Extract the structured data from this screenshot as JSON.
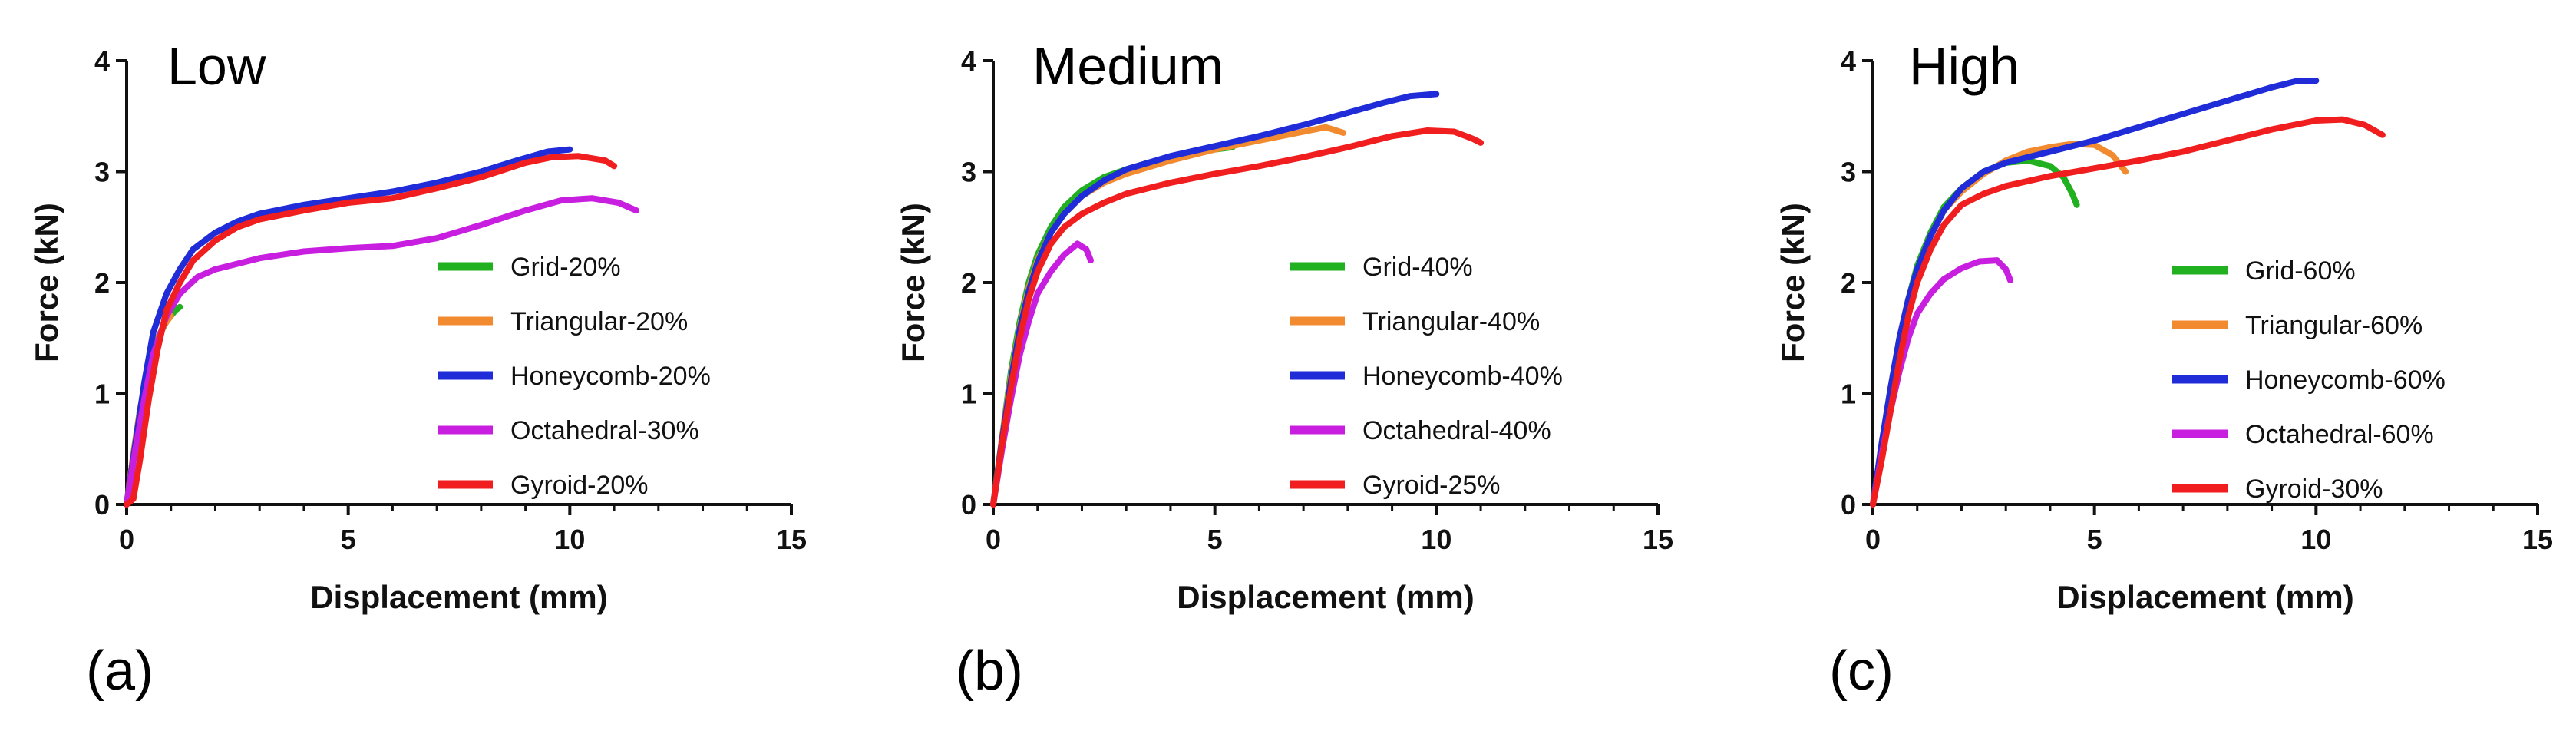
{
  "chart_data": [
    {
      "type": "line",
      "panel_label": "(a)",
      "title": "Low",
      "xlabel": "Displacement (mm)",
      "ylabel": "Force (kN)",
      "xlim": [
        0,
        15
      ],
      "ylim": [
        0,
        4
      ],
      "xticks": [
        "0",
        "5",
        "10",
        "15"
      ],
      "yticks": [
        "0",
        "1",
        "2",
        "3",
        "4"
      ],
      "legend_position": "right",
      "series": [
        {
          "name": "Grid-20%",
          "color": "#20b020",
          "points": [
            [
              0,
              0
            ],
            [
              0.15,
              0.45
            ],
            [
              0.3,
              0.85
            ],
            [
              0.5,
              1.25
            ],
            [
              0.7,
              1.5
            ],
            [
              0.9,
              1.65
            ],
            [
              1.1,
              1.75
            ],
            [
              1.2,
              1.78
            ]
          ]
        },
        {
          "name": "Triangular-20%",
          "color": "#f28a30",
          "points": [
            [
              0,
              0
            ],
            [
              0.15,
              0.45
            ],
            [
              0.3,
              0.85
            ],
            [
              0.5,
              1.25
            ],
            [
              0.7,
              1.5
            ],
            [
              0.85,
              1.62
            ],
            [
              1.0,
              1.7
            ]
          ]
        },
        {
          "name": "Honeycomb-20%",
          "color": "#1f2cd8",
          "points": [
            [
              0,
              0
            ],
            [
              0.2,
              0.55
            ],
            [
              0.4,
              1.1
            ],
            [
              0.6,
              1.55
            ],
            [
              0.9,
              1.9
            ],
            [
              1.2,
              2.12
            ],
            [
              1.5,
              2.3
            ],
            [
              2.0,
              2.45
            ],
            [
              2.5,
              2.55
            ],
            [
              3,
              2.62
            ],
            [
              4,
              2.7
            ],
            [
              5,
              2.76
            ],
            [
              6,
              2.82
            ],
            [
              7,
              2.9
            ],
            [
              8,
              3.0
            ],
            [
              8.8,
              3.1
            ],
            [
              9.5,
              3.18
            ],
            [
              10,
              3.2
            ]
          ]
        },
        {
          "name": "Octahedral-30%",
          "color": "#c81ee0",
          "points": [
            [
              0,
              0
            ],
            [
              0.2,
              0.5
            ],
            [
              0.4,
              0.95
            ],
            [
              0.6,
              1.35
            ],
            [
              0.9,
              1.7
            ],
            [
              1.2,
              1.9
            ],
            [
              1.6,
              2.05
            ],
            [
              2.0,
              2.12
            ],
            [
              3,
              2.22
            ],
            [
              4,
              2.28
            ],
            [
              5,
              2.31
            ],
            [
              6,
              2.33
            ],
            [
              7,
              2.4
            ],
            [
              8,
              2.52
            ],
            [
              9,
              2.65
            ],
            [
              9.8,
              2.74
            ],
            [
              10.5,
              2.76
            ],
            [
              11.1,
              2.72
            ],
            [
              11.5,
              2.65
            ]
          ]
        },
        {
          "name": "Gyroid-20%",
          "color": "#f01e1e",
          "points": [
            [
              0,
              0
            ],
            [
              0.15,
              0.05
            ],
            [
              0.3,
              0.4
            ],
            [
              0.5,
              0.95
            ],
            [
              0.7,
              1.4
            ],
            [
              0.9,
              1.75
            ],
            [
              1.2,
              2.0
            ],
            [
              1.5,
              2.2
            ],
            [
              2.0,
              2.38
            ],
            [
              2.5,
              2.5
            ],
            [
              3,
              2.57
            ],
            [
              4,
              2.65
            ],
            [
              5,
              2.72
            ],
            [
              6,
              2.76
            ],
            [
              7,
              2.85
            ],
            [
              8,
              2.95
            ],
            [
              9,
              3.08
            ],
            [
              9.6,
              3.13
            ],
            [
              10.2,
              3.14
            ],
            [
              10.8,
              3.1
            ],
            [
              11,
              3.05
            ]
          ]
        }
      ]
    },
    {
      "type": "line",
      "panel_label": "(b)",
      "title": "Medium",
      "xlabel": "Displacement (mm)",
      "ylabel": "Force (kN)",
      "xlim": [
        0,
        15
      ],
      "ylim": [
        0,
        4
      ],
      "xticks": [
        "0",
        "5",
        "10",
        "15"
      ],
      "yticks": [
        "0",
        "1",
        "2",
        "3",
        "4"
      ],
      "legend_position": "right",
      "series": [
        {
          "name": "Grid-40%",
          "color": "#20b020",
          "points": [
            [
              0,
              0
            ],
            [
              0.2,
              0.6
            ],
            [
              0.4,
              1.2
            ],
            [
              0.6,
              1.65
            ],
            [
              0.8,
              2.0
            ],
            [
              1.0,
              2.25
            ],
            [
              1.3,
              2.5
            ],
            [
              1.6,
              2.68
            ],
            [
              2.0,
              2.83
            ],
            [
              2.5,
              2.95
            ],
            [
              3,
              3.02
            ],
            [
              3.5,
              3.08
            ],
            [
              4,
              3.12
            ],
            [
              4.5,
              3.16
            ],
            [
              5,
              3.2
            ],
            [
              5.4,
              3.22
            ]
          ]
        },
        {
          "name": "Triangular-40%",
          "color": "#f28a30",
          "points": [
            [
              0,
              0
            ],
            [
              0.2,
              0.6
            ],
            [
              0.4,
              1.15
            ],
            [
              0.6,
              1.6
            ],
            [
              0.8,
              1.95
            ],
            [
              1.0,
              2.2
            ],
            [
              1.3,
              2.45
            ],
            [
              1.6,
              2.62
            ],
            [
              2.0,
              2.78
            ],
            [
              2.5,
              2.9
            ],
            [
              3,
              2.98
            ],
            [
              4,
              3.1
            ],
            [
              5,
              3.2
            ],
            [
              6,
              3.28
            ],
            [
              7,
              3.36
            ],
            [
              7.5,
              3.4
            ],
            [
              7.9,
              3.35
            ]
          ]
        },
        {
          "name": "Honeycomb-40%",
          "color": "#1f2cd8",
          "points": [
            [
              0,
              0
            ],
            [
              0.2,
              0.58
            ],
            [
              0.4,
              1.12
            ],
            [
              0.6,
              1.58
            ],
            [
              0.8,
              1.92
            ],
            [
              1.0,
              2.18
            ],
            [
              1.3,
              2.45
            ],
            [
              1.6,
              2.62
            ],
            [
              2.0,
              2.78
            ],
            [
              2.5,
              2.92
            ],
            [
              3,
              3.02
            ],
            [
              4,
              3.14
            ],
            [
              5,
              3.23
            ],
            [
              6,
              3.32
            ],
            [
              7,
              3.42
            ],
            [
              8,
              3.53
            ],
            [
              8.8,
              3.62
            ],
            [
              9.4,
              3.68
            ],
            [
              10,
              3.7
            ]
          ]
        },
        {
          "name": "Octahedral-40%",
          "color": "#c81ee0",
          "points": [
            [
              0,
              0
            ],
            [
              0.2,
              0.5
            ],
            [
              0.4,
              0.95
            ],
            [
              0.6,
              1.35
            ],
            [
              0.8,
              1.65
            ],
            [
              1.0,
              1.9
            ],
            [
              1.3,
              2.1
            ],
            [
              1.6,
              2.25
            ],
            [
              1.9,
              2.35
            ],
            [
              2.1,
              2.3
            ],
            [
              2.2,
              2.2
            ]
          ]
        },
        {
          "name": "Gyroid-25%",
          "color": "#f01e1e",
          "points": [
            [
              0,
              0
            ],
            [
              0.2,
              0.55
            ],
            [
              0.4,
              1.05
            ],
            [
              0.6,
              1.5
            ],
            [
              0.8,
              1.85
            ],
            [
              1.0,
              2.1
            ],
            [
              1.3,
              2.35
            ],
            [
              1.6,
              2.5
            ],
            [
              2.0,
              2.62
            ],
            [
              2.5,
              2.72
            ],
            [
              3,
              2.8
            ],
            [
              4,
              2.9
            ],
            [
              5,
              2.98
            ],
            [
              6,
              3.05
            ],
            [
              7,
              3.13
            ],
            [
              8,
              3.22
            ],
            [
              9,
              3.32
            ],
            [
              9.8,
              3.37
            ],
            [
              10.4,
              3.36
            ],
            [
              10.8,
              3.3
            ],
            [
              11,
              3.26
            ]
          ]
        }
      ]
    },
    {
      "type": "line",
      "panel_label": "(c)",
      "title": "High",
      "xlabel": "Displacement (mm)",
      "ylabel": "Force (kN)",
      "xlim": [
        0,
        15
      ],
      "ylim": [
        0,
        4
      ],
      "xticks": [
        "0",
        "5",
        "10",
        "15"
      ],
      "yticks": [
        "0",
        "1",
        "2",
        "3",
        "4"
      ],
      "legend_position": "right",
      "series": [
        {
          "name": "Grid-60%",
          "color": "#20b020",
          "points": [
            [
              0,
              0
            ],
            [
              0.2,
              0.55
            ],
            [
              0.4,
              1.05
            ],
            [
              0.6,
              1.5
            ],
            [
              0.8,
              1.85
            ],
            [
              1.0,
              2.15
            ],
            [
              1.3,
              2.45
            ],
            [
              1.6,
              2.68
            ],
            [
              2.0,
              2.85
            ],
            [
              2.5,
              3.0
            ],
            [
              3,
              3.08
            ],
            [
              3.5,
              3.1
            ],
            [
              4,
              3.05
            ],
            [
              4.3,
              2.95
            ],
            [
              4.5,
              2.8
            ],
            [
              4.6,
              2.7
            ]
          ]
        },
        {
          "name": "Triangular-60%",
          "color": "#f28a30",
          "points": [
            [
              0,
              0
            ],
            [
              0.2,
              0.55
            ],
            [
              0.4,
              1.05
            ],
            [
              0.6,
              1.5
            ],
            [
              0.8,
              1.85
            ],
            [
              1.0,
              2.12
            ],
            [
              1.3,
              2.42
            ],
            [
              1.6,
              2.65
            ],
            [
              2.0,
              2.82
            ],
            [
              2.5,
              2.98
            ],
            [
              3,
              3.1
            ],
            [
              3.5,
              3.18
            ],
            [
              4,
              3.22
            ],
            [
              4.5,
              3.25
            ],
            [
              5,
              3.24
            ],
            [
              5.4,
              3.15
            ],
            [
              5.7,
              3.0
            ]
          ]
        },
        {
          "name": "Honeycomb-60%",
          "color": "#1f2cd8",
          "points": [
            [
              0,
              0
            ],
            [
              0.2,
              0.55
            ],
            [
              0.4,
              1.05
            ],
            [
              0.6,
              1.5
            ],
            [
              0.8,
              1.85
            ],
            [
              1.0,
              2.12
            ],
            [
              1.3,
              2.42
            ],
            [
              1.6,
              2.65
            ],
            [
              2.0,
              2.85
            ],
            [
              2.5,
              3.0
            ],
            [
              3,
              3.08
            ],
            [
              3.5,
              3.13
            ],
            [
              4,
              3.18
            ],
            [
              5,
              3.28
            ],
            [
              6,
              3.4
            ],
            [
              7,
              3.52
            ],
            [
              8,
              3.64
            ],
            [
              9,
              3.76
            ],
            [
              9.6,
              3.82
            ],
            [
              10,
              3.82
            ]
          ]
        },
        {
          "name": "Octahedral-60%",
          "color": "#c81ee0",
          "points": [
            [
              0,
              0
            ],
            [
              0.2,
              0.45
            ],
            [
              0.4,
              0.85
            ],
            [
              0.6,
              1.2
            ],
            [
              0.8,
              1.5
            ],
            [
              1.0,
              1.72
            ],
            [
              1.3,
              1.9
            ],
            [
              1.6,
              2.03
            ],
            [
              2.0,
              2.13
            ],
            [
              2.4,
              2.19
            ],
            [
              2.8,
              2.2
            ],
            [
              3.0,
              2.12
            ],
            [
              3.1,
              2.02
            ]
          ]
        },
        {
          "name": "Gyroid-30%",
          "color": "#f01e1e",
          "points": [
            [
              0,
              0
            ],
            [
              0.2,
              0.4
            ],
            [
              0.4,
              0.85
            ],
            [
              0.6,
              1.3
            ],
            [
              0.8,
              1.7
            ],
            [
              1.0,
              2.0
            ],
            [
              1.3,
              2.3
            ],
            [
              1.6,
              2.52
            ],
            [
              2.0,
              2.7
            ],
            [
              2.5,
              2.8
            ],
            [
              3,
              2.87
            ],
            [
              4,
              2.96
            ],
            [
              5,
              3.03
            ],
            [
              6,
              3.1
            ],
            [
              7,
              3.18
            ],
            [
              8,
              3.28
            ],
            [
              9,
              3.38
            ],
            [
              10,
              3.46
            ],
            [
              10.6,
              3.47
            ],
            [
              11.1,
              3.42
            ],
            [
              11.5,
              3.33
            ]
          ]
        }
      ]
    }
  ]
}
